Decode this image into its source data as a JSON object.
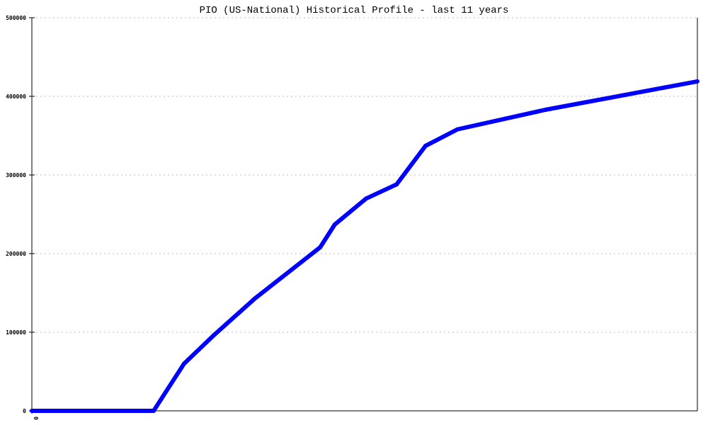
{
  "chart_data": {
    "type": "line",
    "title": "PIO (US-National) Historical Profile - last 11 years",
    "xlabel": "",
    "ylabel": "",
    "x_tick_labels": [
      "0"
    ],
    "y_tick_labels": [
      "0",
      "100000",
      "200000",
      "300000",
      "400000",
      "500000"
    ],
    "ylim": [
      0,
      500000
    ],
    "xlim": [
      0,
      21.86
    ],
    "grid": {
      "horizontal": true,
      "vertical": false,
      "style": "dotted"
    },
    "series": [
      {
        "color": "#0000ff",
        "points": [
          [
            0,
            0
          ],
          [
            4,
            0
          ],
          [
            5,
            60000
          ],
          [
            6,
            97000
          ],
          [
            7.33,
            143000
          ],
          [
            9.47,
            208000
          ],
          [
            9.95,
            237000
          ],
          [
            10.98,
            270000
          ],
          [
            11.98,
            288000
          ],
          [
            12.93,
            337000
          ],
          [
            13.98,
            358000
          ],
          [
            16.88,
            383000
          ],
          [
            21.86,
            419000
          ]
        ]
      }
    ]
  }
}
